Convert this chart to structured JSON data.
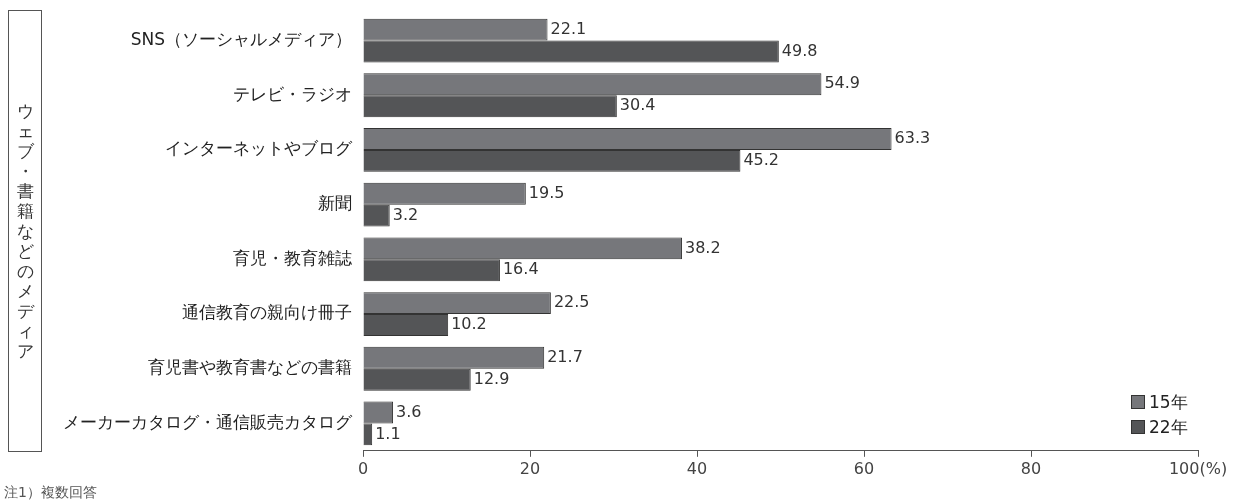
{
  "chart_data": {
    "type": "bar",
    "orientation": "horizontal",
    "categories": [
      "SNS（ソーシャルメディア）",
      "テレビ・ラジオ",
      "インターネットやブログ",
      "新聞",
      "育児・教育雑誌",
      "通信教育の親向け冊子",
      "育児書や教育書などの書籍",
      "メーカーカタログ・通信販売カタログ"
    ],
    "series": [
      {
        "name": "15年",
        "color": "#76777b",
        "values": [
          22.1,
          54.9,
          63.3,
          19.5,
          38.2,
          22.5,
          21.7,
          3.6
        ]
      },
      {
        "name": "22年",
        "color": "#545557",
        "values": [
          49.8,
          30.4,
          45.2,
          3.2,
          16.4,
          10.2,
          12.9,
          1.1
        ]
      }
    ],
    "ylabel": "ウェブ・書籍などのメディア",
    "xlim": [
      0,
      100
    ],
    "xticks": [
      0,
      20,
      40,
      60,
      80,
      {
        "value": 100,
        "label": "100(%)"
      }
    ],
    "grid": false,
    "legend": "bottom right",
    "data_labels": true,
    "annotations": [
      "注1）複数回答"
    ]
  }
}
